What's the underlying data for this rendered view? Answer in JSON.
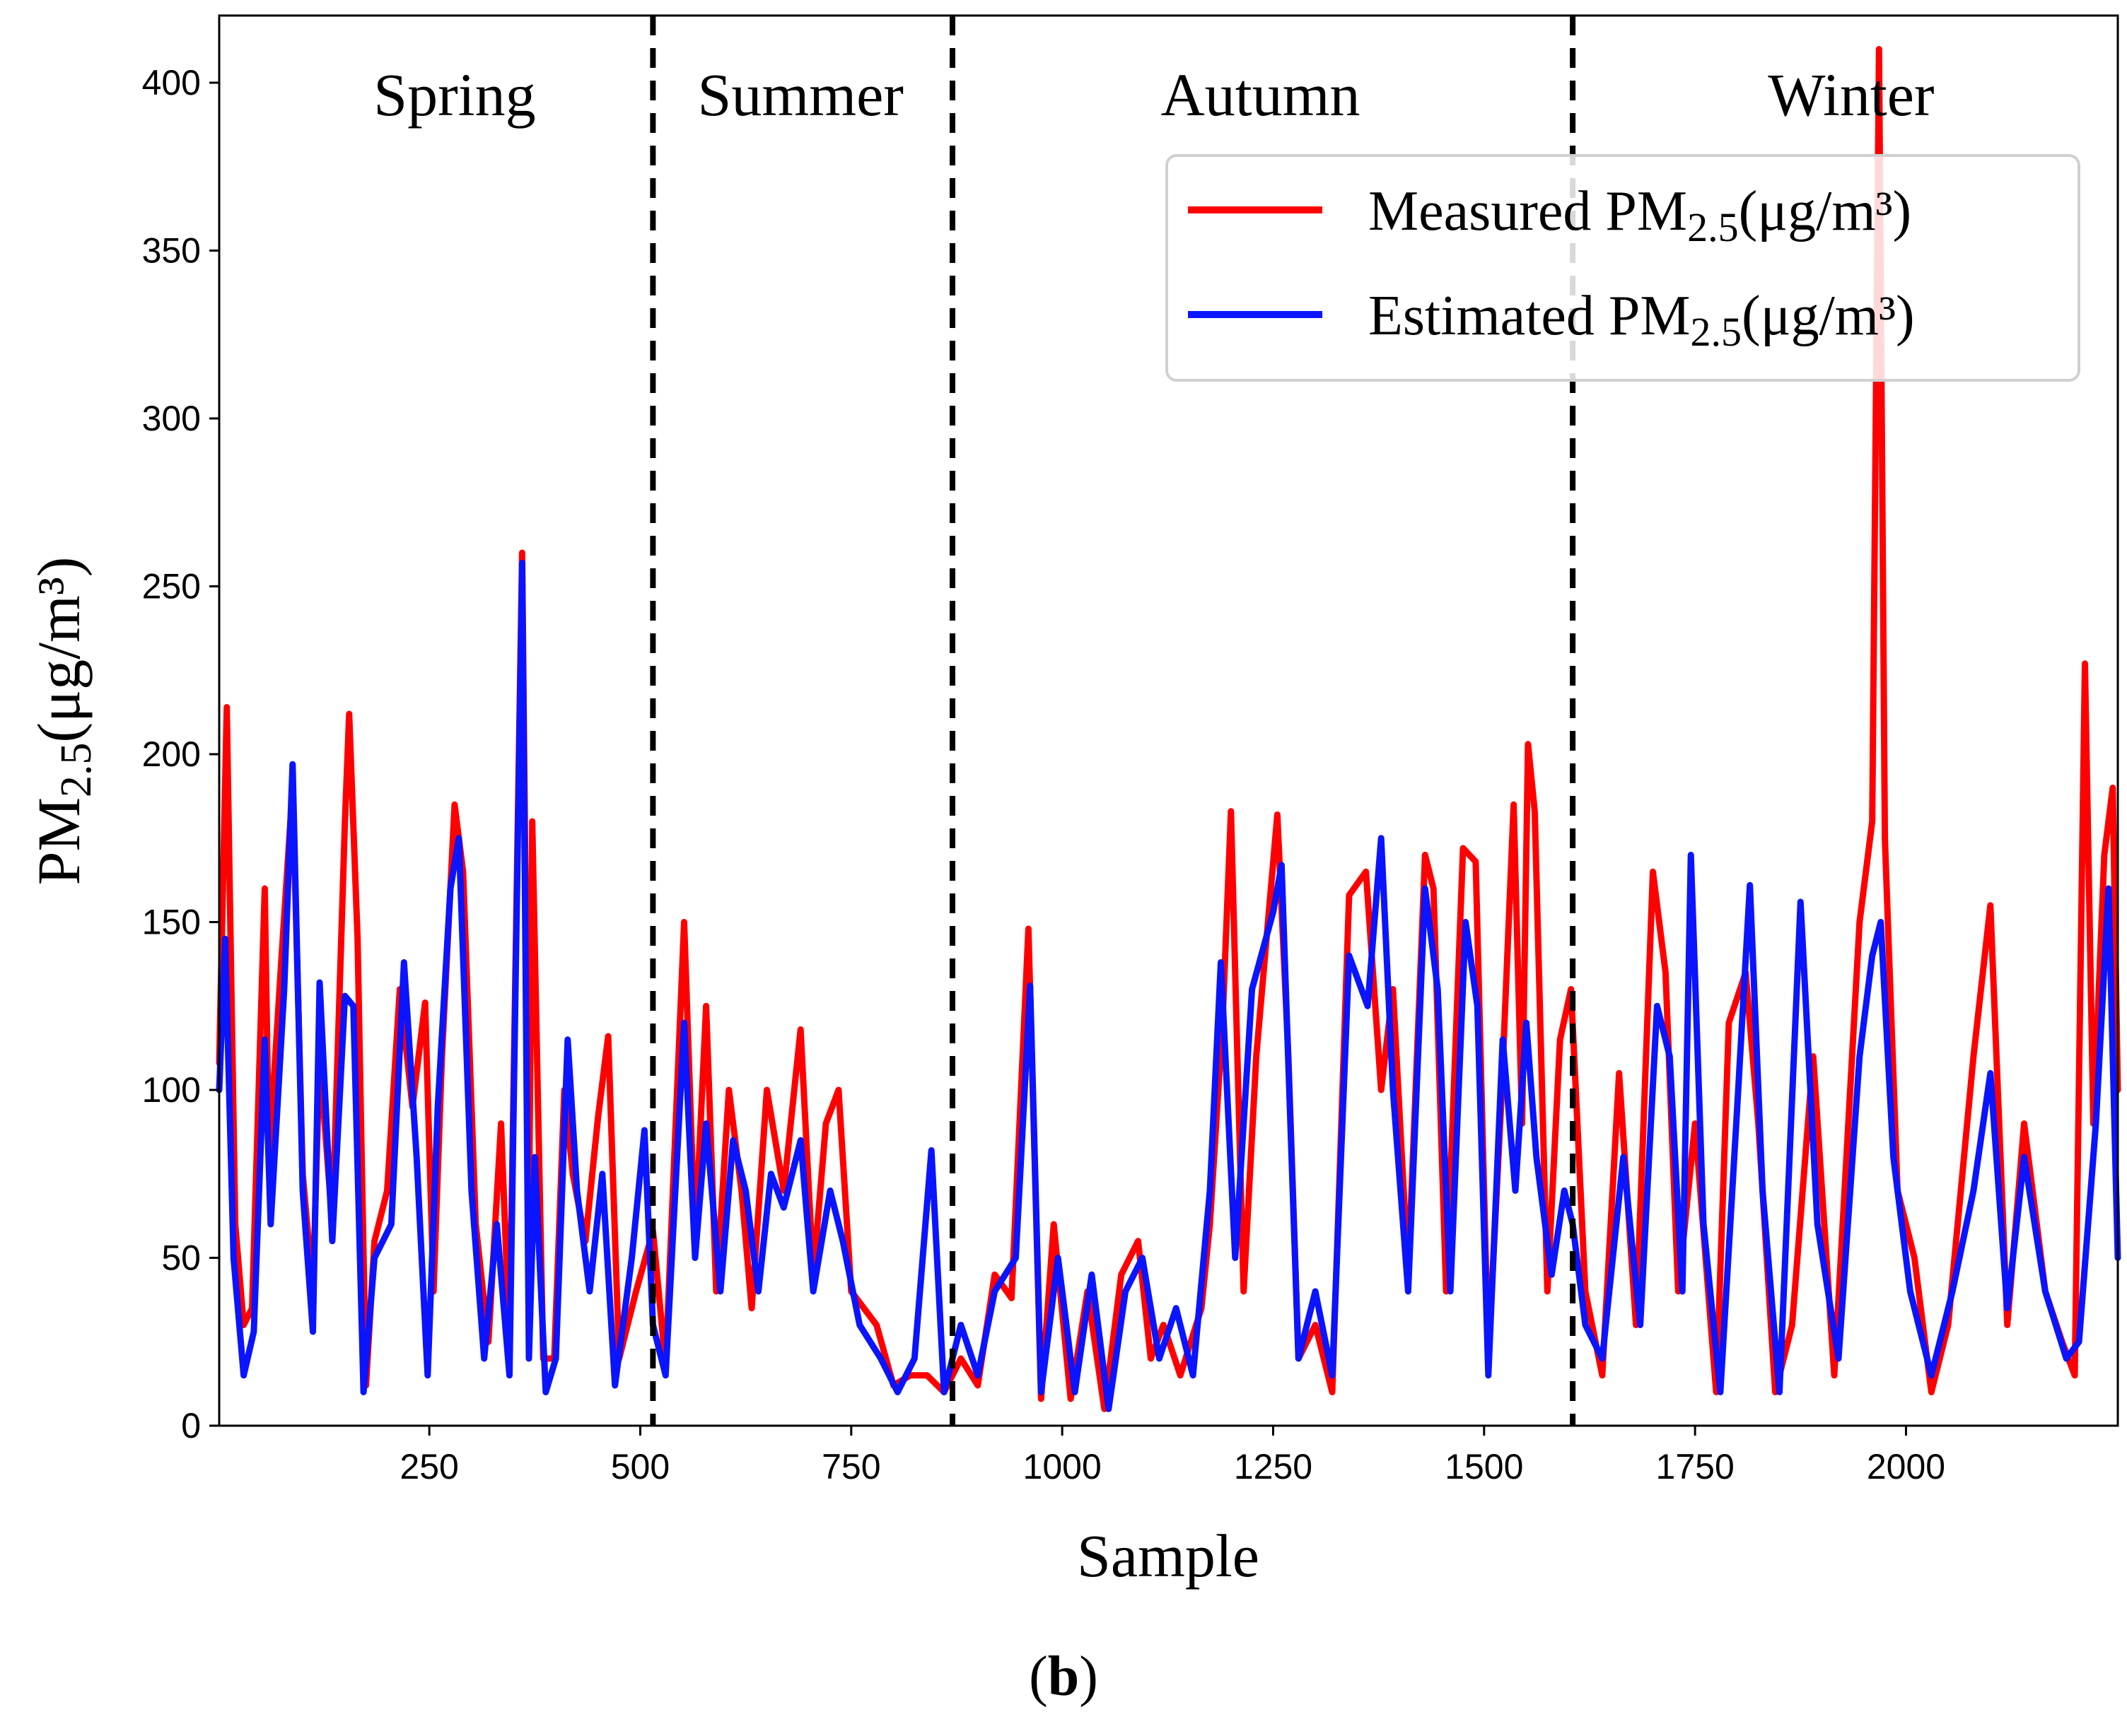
{
  "chart_data": {
    "type": "line",
    "title": "",
    "xlabel": "Sample",
    "ylabel": {
      "base": "PM",
      "sub": "2.5",
      "rest": "(μg/m³)"
    },
    "xlim": [
      1,
      2251
    ],
    "ylim": [
      0,
      420
    ],
    "x_ticks": [
      250,
      500,
      750,
      1000,
      1250,
      1500,
      1750,
      2000
    ],
    "y_ticks": [
      0,
      50,
      100,
      150,
      200,
      250,
      300,
      350,
      400
    ],
    "grid": false,
    "legend_position": "top-right",
    "season_boundaries": [
      515,
      870,
      1605
    ],
    "seasons": [
      {
        "name": "Spring",
        "center": 280
      },
      {
        "name": "Summer",
        "center": 690
      },
      {
        "name": "Autumn",
        "center": 1235
      },
      {
        "name": "Winter",
        "center": 1935
      }
    ],
    "series": [
      {
        "name": {
          "base": "Measured PM",
          "sub": "2.5",
          "rest": "(μg/m³)"
        },
        "color": "#ff0000",
        "points": [
          [
            1,
            108
          ],
          [
            10,
            214
          ],
          [
            20,
            60
          ],
          [
            30,
            30
          ],
          [
            40,
            35
          ],
          [
            55,
            160
          ],
          [
            60,
            80
          ],
          [
            75,
            140
          ],
          [
            88,
            190
          ],
          [
            100,
            75
          ],
          [
            112,
            40
          ],
          [
            120,
            110
          ],
          [
            135,
            60
          ],
          [
            150,
            180
          ],
          [
            155,
            212
          ],
          [
            165,
            145
          ],
          [
            175,
            12
          ],
          [
            185,
            55
          ],
          [
            200,
            70
          ],
          [
            215,
            130
          ],
          [
            230,
            95
          ],
          [
            245,
            126
          ],
          [
            255,
            40
          ],
          [
            265,
            110
          ],
          [
            280,
            185
          ],
          [
            290,
            165
          ],
          [
            305,
            60
          ],
          [
            320,
            25
          ],
          [
            335,
            90
          ],
          [
            345,
            25
          ],
          [
            360,
            260
          ],
          [
            368,
            60
          ],
          [
            372,
            180
          ],
          [
            385,
            20
          ],
          [
            398,
            20
          ],
          [
            410,
            100
          ],
          [
            420,
            75
          ],
          [
            435,
            55
          ],
          [
            450,
            92
          ],
          [
            462,
            116
          ],
          [
            475,
            20
          ],
          [
            495,
            40
          ],
          [
            515,
            58
          ],
          [
            530,
            18
          ],
          [
            552,
            150
          ],
          [
            565,
            55
          ],
          [
            578,
            125
          ],
          [
            590,
            40
          ],
          [
            605,
            100
          ],
          [
            620,
            70
          ],
          [
            632,
            35
          ],
          [
            650,
            100
          ],
          [
            670,
            70
          ],
          [
            690,
            118
          ],
          [
            705,
            45
          ],
          [
            720,
            90
          ],
          [
            735,
            100
          ],
          [
            750,
            40
          ],
          [
            780,
            30
          ],
          [
            800,
            12
          ],
          [
            820,
            15
          ],
          [
            840,
            15
          ],
          [
            860,
            10
          ],
          [
            880,
            20
          ],
          [
            900,
            12
          ],
          [
            920,
            45
          ],
          [
            940,
            38
          ],
          [
            960,
            148
          ],
          [
            975,
            8
          ],
          [
            990,
            60
          ],
          [
            1010,
            8
          ],
          [
            1030,
            40
          ],
          [
            1050,
            5
          ],
          [
            1070,
            45
          ],
          [
            1090,
            55
          ],
          [
            1105,
            20
          ],
          [
            1120,
            30
          ],
          [
            1140,
            15
          ],
          [
            1165,
            35
          ],
          [
            1175,
            60
          ],
          [
            1190,
            120
          ],
          [
            1200,
            183
          ],
          [
            1215,
            40
          ],
          [
            1230,
            110
          ],
          [
            1255,
            182
          ],
          [
            1268,
            110
          ],
          [
            1280,
            20
          ],
          [
            1300,
            30
          ],
          [
            1320,
            10
          ],
          [
            1340,
            158
          ],
          [
            1360,
            165
          ],
          [
            1378,
            100
          ],
          [
            1392,
            130
          ],
          [
            1410,
            45
          ],
          [
            1430,
            170
          ],
          [
            1440,
            160
          ],
          [
            1455,
            40
          ],
          [
            1475,
            172
          ],
          [
            1490,
            168
          ],
          [
            1505,
            20
          ],
          [
            1520,
            95
          ],
          [
            1535,
            185
          ],
          [
            1545,
            90
          ],
          [
            1552,
            203
          ],
          [
            1560,
            183
          ],
          [
            1575,
            40
          ],
          [
            1590,
            115
          ],
          [
            1603,
            130
          ],
          [
            1620,
            40
          ],
          [
            1640,
            15
          ],
          [
            1660,
            105
          ],
          [
            1680,
            30
          ],
          [
            1700,
            165
          ],
          [
            1715,
            135
          ],
          [
            1730,
            40
          ],
          [
            1750,
            90
          ],
          [
            1775,
            10
          ],
          [
            1790,
            120
          ],
          [
            1810,
            135
          ],
          [
            1825,
            90
          ],
          [
            1845,
            10
          ],
          [
            1865,
            30
          ],
          [
            1890,
            110
          ],
          [
            1915,
            15
          ],
          [
            1945,
            150
          ],
          [
            1960,
            180
          ],
          [
            1968,
            410
          ],
          [
            1975,
            175
          ],
          [
            1990,
            70
          ],
          [
            2010,
            50
          ],
          [
            2030,
            10
          ],
          [
            2050,
            30
          ],
          [
            2080,
            110
          ],
          [
            2100,
            155
          ],
          [
            2120,
            30
          ],
          [
            2140,
            90
          ],
          [
            2165,
            40
          ],
          [
            2185,
            25
          ],
          [
            2200,
            15
          ],
          [
            2212,
            227
          ],
          [
            2222,
            90
          ],
          [
            2235,
            170
          ],
          [
            2245,
            190
          ],
          [
            2251,
            100
          ]
        ]
      },
      {
        "name": {
          "base": "Estimated PM",
          "sub": "2.5",
          "rest": "(μg/m³)"
        },
        "color": "#0a14ff",
        "points": [
          [
            1,
            100
          ],
          [
            8,
            145
          ],
          [
            18,
            50
          ],
          [
            30,
            15
          ],
          [
            42,
            28
          ],
          [
            55,
            115
          ],
          [
            62,
            60
          ],
          [
            78,
            130
          ],
          [
            88,
            197
          ],
          [
            100,
            70
          ],
          [
            112,
            28
          ],
          [
            120,
            132
          ],
          [
            135,
            55
          ],
          [
            150,
            128
          ],
          [
            160,
            125
          ],
          [
            172,
            10
          ],
          [
            185,
            50
          ],
          [
            205,
            60
          ],
          [
            220,
            138
          ],
          [
            235,
            80
          ],
          [
            248,
            15
          ],
          [
            260,
            95
          ],
          [
            275,
            160
          ],
          [
            285,
            175
          ],
          [
            300,
            70
          ],
          [
            315,
            20
          ],
          [
            330,
            60
          ],
          [
            345,
            15
          ],
          [
            360,
            257
          ],
          [
            368,
            20
          ],
          [
            375,
            80
          ],
          [
            388,
            10
          ],
          [
            400,
            20
          ],
          [
            414,
            115
          ],
          [
            425,
            70
          ],
          [
            440,
            40
          ],
          [
            455,
            75
          ],
          [
            470,
            12
          ],
          [
            490,
            50
          ],
          [
            505,
            88
          ],
          [
            515,
            30
          ],
          [
            530,
            15
          ],
          [
            552,
            120
          ],
          [
            565,
            50
          ],
          [
            578,
            90
          ],
          [
            595,
            40
          ],
          [
            610,
            85
          ],
          [
            625,
            70
          ],
          [
            640,
            40
          ],
          [
            655,
            75
          ],
          [
            670,
            65
          ],
          [
            690,
            85
          ],
          [
            705,
            40
          ],
          [
            725,
            70
          ],
          [
            740,
            55
          ],
          [
            760,
            30
          ],
          [
            785,
            20
          ],
          [
            805,
            10
          ],
          [
            825,
            20
          ],
          [
            845,
            82
          ],
          [
            860,
            10
          ],
          [
            880,
            30
          ],
          [
            900,
            15
          ],
          [
            920,
            40
          ],
          [
            945,
            50
          ],
          [
            962,
            131
          ],
          [
            975,
            10
          ],
          [
            995,
            50
          ],
          [
            1015,
            10
          ],
          [
            1035,
            45
          ],
          [
            1055,
            5
          ],
          [
            1075,
            40
          ],
          [
            1095,
            50
          ],
          [
            1115,
            20
          ],
          [
            1135,
            35
          ],
          [
            1155,
            15
          ],
          [
            1175,
            70
          ],
          [
            1188,
            138
          ],
          [
            1205,
            50
          ],
          [
            1225,
            130
          ],
          [
            1250,
            153
          ],
          [
            1260,
            167
          ],
          [
            1280,
            20
          ],
          [
            1300,
            40
          ],
          [
            1320,
            15
          ],
          [
            1340,
            140
          ],
          [
            1362,
            125
          ],
          [
            1378,
            175
          ],
          [
            1392,
            100
          ],
          [
            1410,
            40
          ],
          [
            1430,
            160
          ],
          [
            1445,
            130
          ],
          [
            1460,
            40
          ],
          [
            1478,
            150
          ],
          [
            1492,
            125
          ],
          [
            1505,
            15
          ],
          [
            1522,
            115
          ],
          [
            1537,
            70
          ],
          [
            1550,
            120
          ],
          [
            1562,
            80
          ],
          [
            1580,
            45
          ],
          [
            1595,
            70
          ],
          [
            1605,
            60
          ],
          [
            1620,
            30
          ],
          [
            1640,
            20
          ],
          [
            1665,
            80
          ],
          [
            1685,
            30
          ],
          [
            1705,
            125
          ],
          [
            1720,
            110
          ],
          [
            1735,
            40
          ],
          [
            1745,
            170
          ],
          [
            1760,
            60
          ],
          [
            1780,
            10
          ],
          [
            1800,
            95
          ],
          [
            1815,
            161
          ],
          [
            1830,
            70
          ],
          [
            1850,
            10
          ],
          [
            1875,
            156
          ],
          [
            1895,
            60
          ],
          [
            1920,
            20
          ],
          [
            1945,
            110
          ],
          [
            1960,
            140
          ],
          [
            1970,
            150
          ],
          [
            1985,
            80
          ],
          [
            2005,
            40
          ],
          [
            2030,
            15
          ],
          [
            2055,
            40
          ],
          [
            2080,
            70
          ],
          [
            2100,
            105
          ],
          [
            2120,
            35
          ],
          [
            2140,
            80
          ],
          [
            2165,
            40
          ],
          [
            2190,
            20
          ],
          [
            2205,
            25
          ],
          [
            2225,
            90
          ],
          [
            2240,
            160
          ],
          [
            2251,
            50
          ]
        ]
      }
    ]
  },
  "caption": "b"
}
